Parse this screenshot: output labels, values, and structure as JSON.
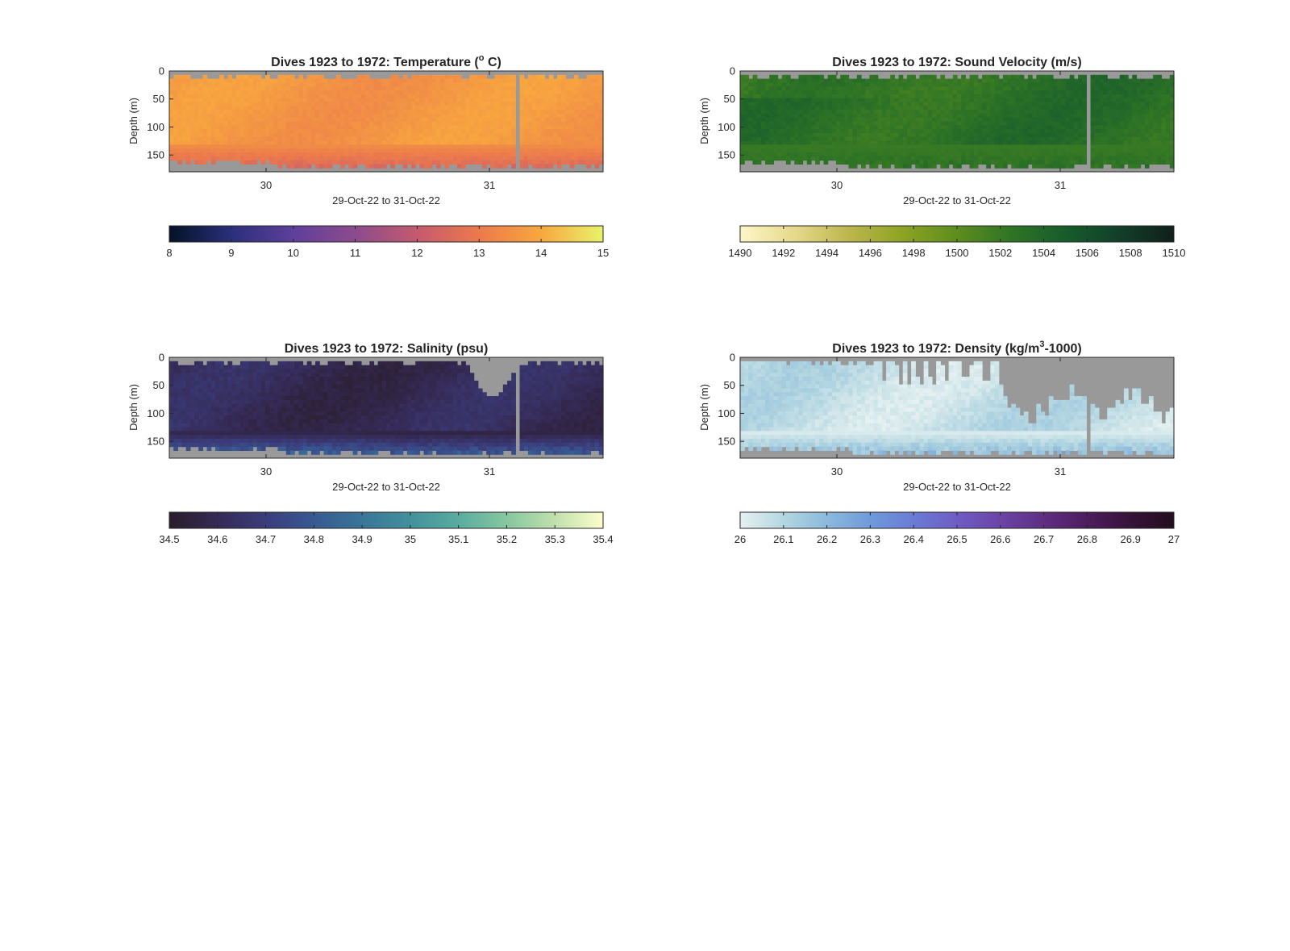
{
  "figure": {
    "background": "#ffffff",
    "missing_color": "#999999"
  },
  "chart_data": [
    {
      "type": "heatmap",
      "id": "temperature",
      "title": "Dives 1923 to 1972: Temperature (° C)",
      "title_text": "Dives 1923 to 1972: Temperature (",
      "title_sup": "o",
      "title_end": " C)",
      "xlabel": "29-Oct-22 to 31-Oct-22",
      "ylabel": "Depth (m)",
      "xticks": [
        "30",
        "31"
      ],
      "yticks": [
        "0",
        "50",
        "100",
        "150"
      ],
      "ylim": [
        0,
        180
      ],
      "y_reversed": true,
      "colorbar": {
        "ticks": [
          "8",
          "9",
          "10",
          "11",
          "12",
          "13",
          "14",
          "15"
        ],
        "range": [
          8,
          15
        ],
        "colors": [
          "#031326",
          "#2a2f7a",
          "#5e3f9c",
          "#8c4b8d",
          "#c45a6e",
          "#ec7a4c",
          "#f8a73f",
          "#e8f36a"
        ]
      },
      "dominant_range": [
        13.4,
        13.9
      ],
      "bottom_range": [
        12.0,
        12.6
      ],
      "column_gap_near": "31"
    },
    {
      "type": "heatmap",
      "id": "sound_velocity",
      "title": "Dives 1923 to 1972: Sound Velocity (m/s)",
      "xlabel": "29-Oct-22 to 31-Oct-22",
      "ylabel": "Depth (m)",
      "xticks": [
        "30",
        "31"
      ],
      "yticks": [
        "0",
        "50",
        "100",
        "150"
      ],
      "ylim": [
        0,
        180
      ],
      "y_reversed": true,
      "colorbar": {
        "ticks": [
          "1490",
          "1492",
          "1494",
          "1496",
          "1498",
          "1500",
          "1502",
          "1504",
          "1506",
          "1508",
          "1510"
        ],
        "range": [
          1490,
          1510
        ],
        "colors": [
          "#fdf6c8",
          "#e6d98c",
          "#bdb64d",
          "#8da323",
          "#5d8d1e",
          "#2f7425",
          "#175c2c",
          "#123f29",
          "#111f1a"
        ]
      },
      "dominant_range": [
        1502,
        1504
      ],
      "column_gap_near": "31"
    },
    {
      "type": "heatmap",
      "id": "salinity",
      "title": "Dives 1923 to 1972: Salinity (psu)",
      "xlabel": "29-Oct-22 to 31-Oct-22",
      "ylabel": "Depth (m)",
      "xticks": [
        "30",
        "31"
      ],
      "yticks": [
        "0",
        "50",
        "100",
        "150"
      ],
      "ylim": [
        0,
        180
      ],
      "y_reversed": true,
      "colorbar": {
        "ticks": [
          "34.5",
          "34.6",
          "34.7",
          "34.8",
          "34.9",
          "35",
          "35.1",
          "35.2",
          "35.3",
          "35.4"
        ],
        "range": [
          34.5,
          35.4
        ],
        "colors": [
          "#291d2b",
          "#352a55",
          "#3b3d7c",
          "#375992",
          "#3a7598",
          "#44909c",
          "#5aaca0",
          "#86c79f",
          "#c0e0ad",
          "#fdfecc"
        ]
      },
      "dominant_range": [
        34.55,
        34.65
      ],
      "bottom_range": [
        34.8,
        34.95
      ],
      "column_gap_near": "31"
    },
    {
      "type": "heatmap",
      "id": "density",
      "title": "Dives 1923 to 1972: Density (kg/m³-1000)",
      "title_text": "Dives 1923 to 1972: Density (kg/m",
      "title_sup": "3",
      "title_end": "-1000)",
      "xlabel": "29-Oct-22 to 31-Oct-22",
      "ylabel": "Depth (m)",
      "xticks": [
        "30",
        "31"
      ],
      "yticks": [
        "0",
        "50",
        "100",
        "150"
      ],
      "ylim": [
        0,
        180
      ],
      "y_reversed": true,
      "colorbar": {
        "ticks": [
          "26",
          "26.1",
          "26.2",
          "26.3",
          "26.4",
          "26.5",
          "26.6",
          "26.7",
          "26.8",
          "26.9",
          "27"
        ],
        "range": [
          26,
          27
        ],
        "colors": [
          "#e6f1f1",
          "#b3d6e1",
          "#8cbadc",
          "#6f9ad9",
          "#6a7bd5",
          "#6e5dc4",
          "#6b44a5",
          "#5f2e83",
          "#4d1d5e",
          "#361339",
          "#230d1f"
        ]
      },
      "dominant_range": [
        26.02,
        26.12
      ],
      "bottom_range": [
        26.15,
        26.3
      ],
      "column_gap_near": "31"
    }
  ]
}
